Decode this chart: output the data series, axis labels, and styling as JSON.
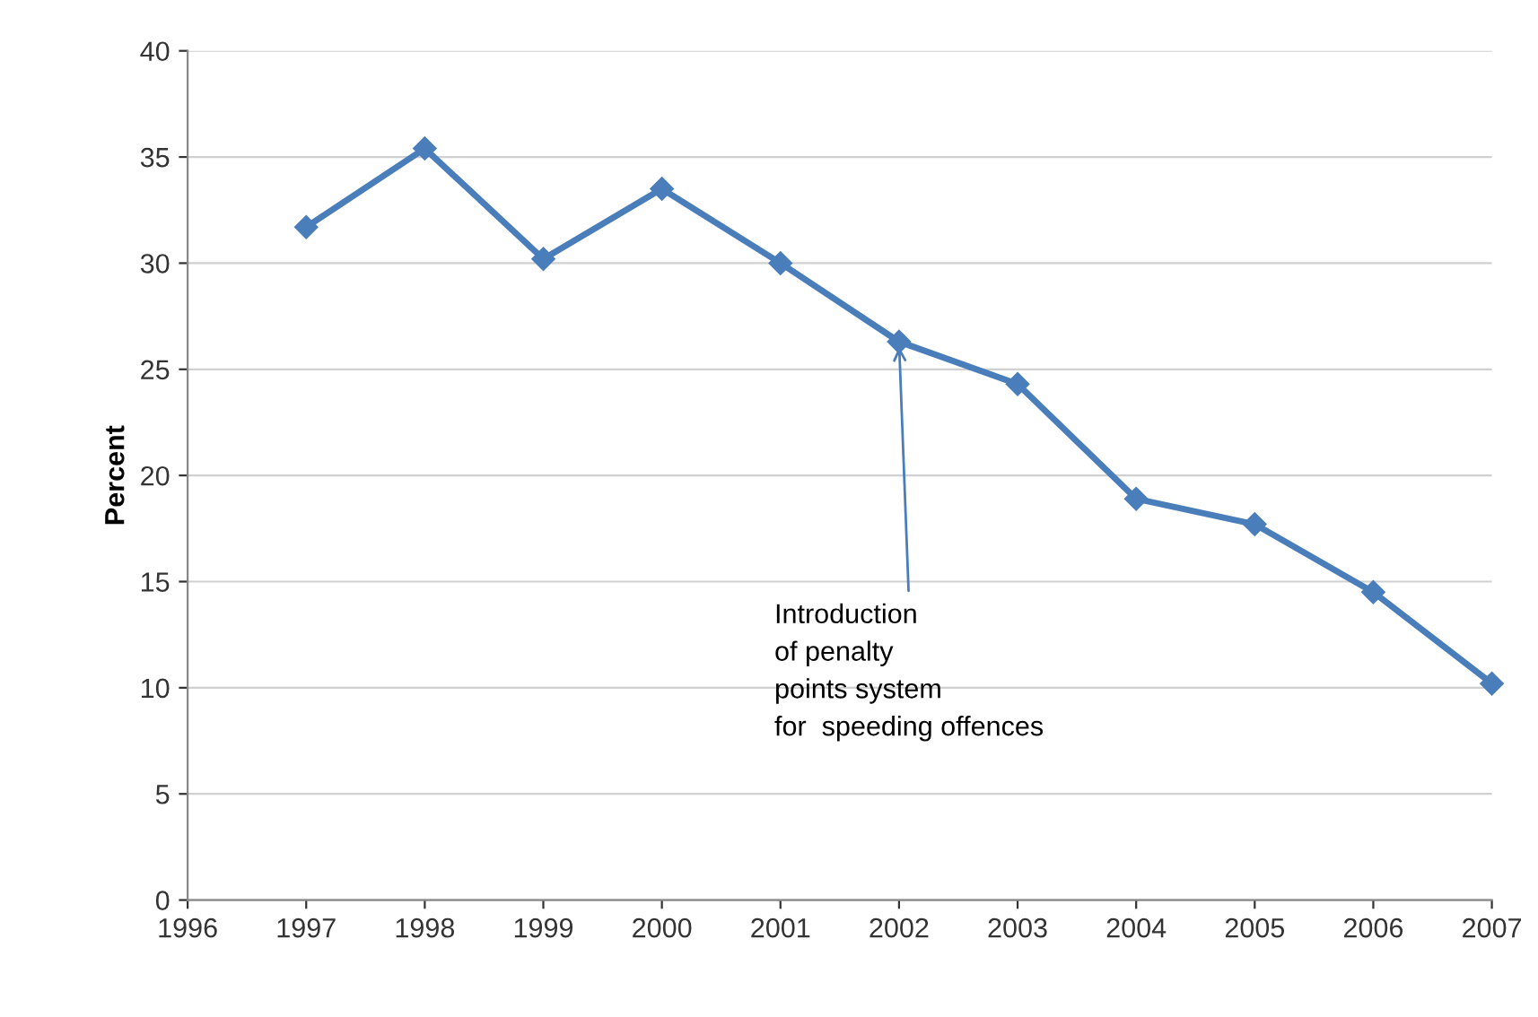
{
  "chart_data": {
    "type": "line",
    "ylabel": "Percent",
    "x": [
      1997,
      1998,
      1999,
      2000,
      2001,
      2002,
      2003,
      2004,
      2005,
      2006,
      2007
    ],
    "series": [
      {
        "color": "#4a7ebb",
        "values": [
          31.7,
          35.4,
          30.2,
          33.5,
          30.0,
          26.3,
          24.3,
          18.9,
          17.7,
          14.5,
          10.2
        ]
      }
    ],
    "xlim": [
      1996,
      2007
    ],
    "xticks": [
      1996,
      1997,
      1998,
      1999,
      2000,
      2001,
      2002,
      2003,
      2004,
      2005,
      2006,
      2007
    ],
    "ylim": [
      0,
      40
    ],
    "yticks": [
      0,
      5,
      10,
      15,
      20,
      25,
      30,
      35,
      40
    ],
    "grid": "y",
    "marker": "diamond",
    "line_style": "solid",
    "annotations": [
      {
        "text": "Introduction\nof penalty\npoints system\nfor  speeding offences",
        "x": 2002,
        "y": 26.3
      }
    ]
  }
}
